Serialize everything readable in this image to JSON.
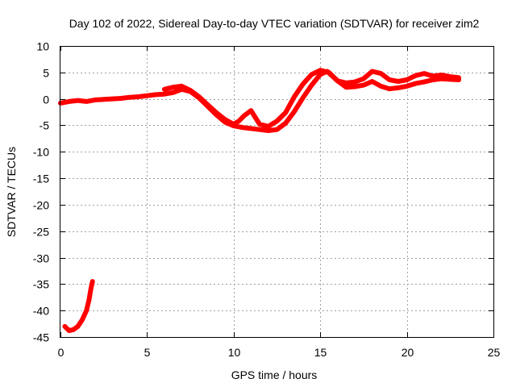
{
  "chart_data": {
    "type": "line",
    "title": "Day 102 of 2022, Sidereal Day-to-day VTEC variation (SDTVAR) for receiver zim2",
    "xlabel": "GPS time / hours",
    "ylabel": "SDTVAR / TECUs",
    "xlim": [
      0,
      25
    ],
    "ylim": [
      -45,
      10
    ],
    "xticks": [
      0,
      5,
      10,
      15,
      20,
      25
    ],
    "yticks": [
      10,
      5,
      0,
      -5,
      -10,
      -15,
      -20,
      -25,
      -30,
      -35,
      -40,
      -45
    ],
    "grid": true,
    "series": [
      {
        "name": "zim2 SDTVAR (descending pass)",
        "color": "#ff0000",
        "points": [
          [
            0.0,
            -0.8
          ],
          [
            0.5,
            -0.5
          ],
          [
            1.0,
            -0.3
          ],
          [
            1.5,
            -0.5
          ],
          [
            2.0,
            -0.2
          ],
          [
            2.5,
            -0.1
          ],
          [
            3.0,
            0.0
          ],
          [
            3.5,
            0.1
          ],
          [
            4.0,
            0.3
          ],
          [
            4.5,
            0.4
          ],
          [
            5.0,
            0.6
          ],
          [
            5.5,
            0.8
          ],
          [
            6.0,
            0.9
          ],
          [
            6.5,
            1.2
          ],
          [
            7.0,
            1.8
          ],
          [
            7.5,
            1.4
          ],
          [
            8.0,
            0.2
          ],
          [
            8.5,
            -1.4
          ],
          [
            9.0,
            -3.0
          ],
          [
            9.5,
            -4.4
          ],
          [
            10.0,
            -5.1
          ],
          [
            10.5,
            -5.4
          ],
          [
            11.0,
            -5.6
          ],
          [
            11.5,
            -5.8
          ],
          [
            12.0,
            -6.0
          ],
          [
            12.5,
            -5.8
          ],
          [
            13.0,
            -4.6
          ],
          [
            13.5,
            -2.4
          ],
          [
            14.0,
            0.2
          ],
          [
            14.5,
            2.6
          ],
          [
            15.0,
            4.6
          ],
          [
            15.4,
            5.2
          ],
          [
            16.0,
            3.4
          ],
          [
            16.5,
            2.2
          ],
          [
            17.0,
            2.3
          ],
          [
            17.5,
            2.6
          ],
          [
            18.0,
            3.3
          ],
          [
            18.5,
            2.4
          ],
          [
            19.0,
            1.9
          ],
          [
            19.5,
            2.1
          ],
          [
            20.0,
            2.4
          ],
          [
            20.5,
            2.9
          ],
          [
            21.0,
            3.2
          ],
          [
            21.5,
            3.6
          ],
          [
            22.0,
            3.8
          ],
          [
            22.5,
            3.7
          ],
          [
            23.0,
            3.6
          ]
        ]
      },
      {
        "name": "zim2 SDTVAR (ascending pass)",
        "color": "#ff0000",
        "points": [
          [
            6.0,
            1.8
          ],
          [
            6.5,
            2.2
          ],
          [
            7.0,
            2.4
          ],
          [
            7.5,
            1.6
          ],
          [
            8.0,
            0.4
          ],
          [
            8.5,
            -1.1
          ],
          [
            9.0,
            -2.6
          ],
          [
            9.5,
            -3.9
          ],
          [
            10.0,
            -4.8
          ],
          [
            10.3,
            -4.2
          ],
          [
            10.6,
            -3.2
          ],
          [
            11.0,
            -2.2
          ],
          [
            11.5,
            -4.8
          ],
          [
            12.0,
            -5.2
          ],
          [
            12.5,
            -4.2
          ],
          [
            13.0,
            -2.6
          ],
          [
            13.5,
            0.4
          ],
          [
            14.0,
            2.8
          ],
          [
            14.5,
            4.6
          ],
          [
            15.0,
            5.4
          ],
          [
            15.5,
            5.0
          ],
          [
            16.0,
            3.4
          ],
          [
            16.5,
            3.0
          ],
          [
            17.0,
            3.2
          ],
          [
            17.5,
            3.8
          ],
          [
            18.0,
            5.2
          ],
          [
            18.5,
            4.8
          ],
          [
            19.0,
            3.6
          ],
          [
            19.5,
            3.3
          ],
          [
            20.0,
            3.6
          ],
          [
            20.5,
            4.4
          ],
          [
            21.0,
            4.8
          ],
          [
            21.5,
            4.3
          ],
          [
            22.0,
            4.5
          ],
          [
            22.5,
            4.2
          ],
          [
            23.0,
            4.0
          ]
        ]
      },
      {
        "name": "zim2 SDTVAR (early arc)",
        "color": "#ff0000",
        "points": [
          [
            0.25,
            -43.0
          ],
          [
            0.5,
            -43.8
          ],
          [
            0.75,
            -43.6
          ],
          [
            1.0,
            -43.0
          ],
          [
            1.25,
            -41.8
          ],
          [
            1.5,
            -40.0
          ],
          [
            1.65,
            -38.0
          ],
          [
            1.75,
            -36.0
          ],
          [
            1.85,
            -34.5
          ]
        ]
      }
    ]
  }
}
